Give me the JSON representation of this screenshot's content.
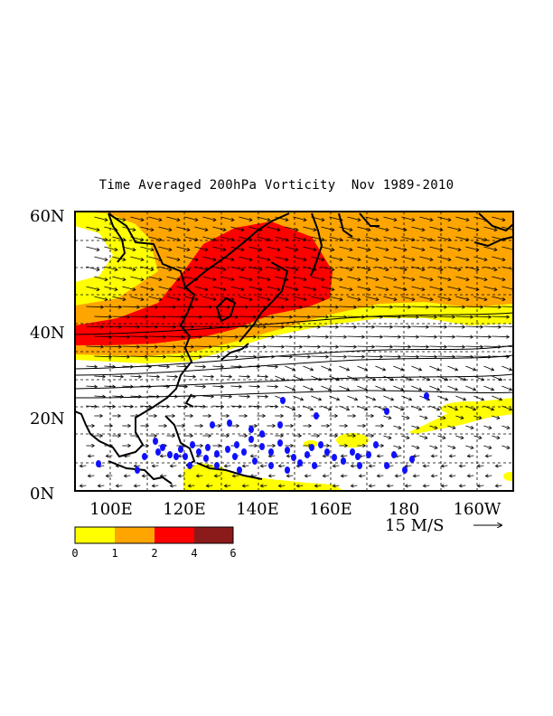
{
  "title": "Time Averaged 200hPa Vorticity  Nov 1989-2010",
  "lat_labels": [
    "60N",
    "40N",
    "20N",
    "0N"
  ],
  "lon_labels": [
    "100E",
    "120E",
    "140E",
    "160E",
    "180",
    "160W"
  ],
  "vector_scale": {
    "label": "15 M/S"
  },
  "colorbar": {
    "ticks": [
      "0",
      "1",
      "2",
      "4",
      "6"
    ],
    "colors": [
      "#ffff00",
      "#ffa500",
      "#ff0000",
      "#8b1a1a"
    ]
  },
  "colors": {
    "yellow": "#ffff00",
    "orange": "#ffa500",
    "red": "#ff0000",
    "dark_red": "#8b1a1a",
    "dots": "#1010ff"
  }
}
